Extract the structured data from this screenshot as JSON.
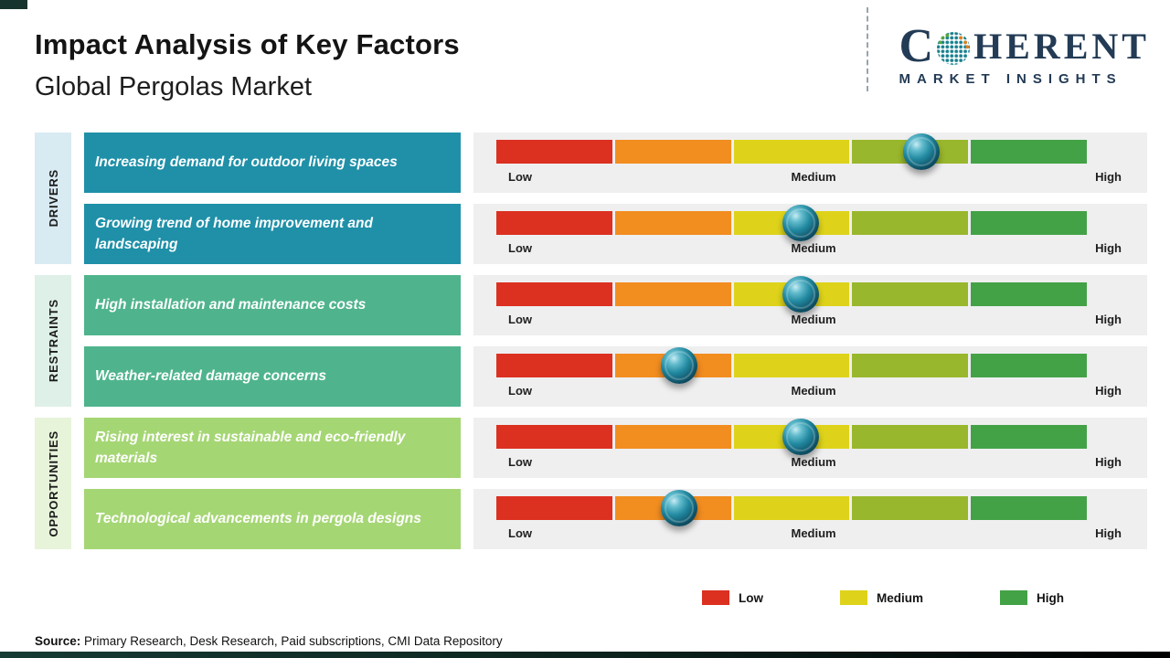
{
  "header": {
    "title": "Impact Analysis of Key Factors",
    "subtitle": "Global Pergolas Market"
  },
  "logo": {
    "brand_c": "C",
    "brand_rest": "HERENT",
    "tagline": "MARKET INSIGHTS",
    "navy": "#233b55"
  },
  "scale": {
    "low": "Low",
    "medium": "Medium",
    "high": "High"
  },
  "bar_colors": {
    "red": "#dc3020",
    "orange": "#f28d20",
    "yellow": "#ded31a",
    "yellow_green": "#99b72c",
    "green": "#43a246"
  },
  "categories": [
    {
      "label": "DRIVERS",
      "box_color": "#1f90a8",
      "strip_color": "#d8eaf2",
      "factors": [
        {
          "text": "Increasing demand for outdoor living spaces",
          "impact": 0.72
        },
        {
          "text": "Growing trend of home improvement and landscaping",
          "impact": 0.515
        }
      ]
    },
    {
      "label": "RESTRAINTS",
      "box_color": "#4fb48d",
      "strip_color": "#def0e7",
      "factors": [
        {
          "text": "High installation and maintenance costs",
          "impact": 0.515
        },
        {
          "text": "Weather-related damage concerns",
          "impact": 0.31
        }
      ]
    },
    {
      "label": "OPPORTUNITIES",
      "box_color": "#a5d674",
      "strip_color": "#e7f4da",
      "factors": [
        {
          "text": "Rising interest in sustainable and eco-friendly materials",
          "impact": 0.515
        },
        {
          "text": "Technological advancements in pergola designs",
          "impact": 0.31
        }
      ]
    }
  ],
  "legend": [
    {
      "label": "Low",
      "color": "#dc3020"
    },
    {
      "label": "Medium",
      "color": "#ded31a"
    },
    {
      "label": "High",
      "color": "#43a246"
    }
  ],
  "source": {
    "label": "Source:",
    "text": " Primary Research, Desk Research, Paid subscriptions, CMI Data Repository"
  },
  "chart_data": {
    "type": "bar",
    "title": "Impact Analysis of Key Factors",
    "subtitle": "Global Pergolas Market",
    "scale_labels": [
      "Low",
      "Medium",
      "High"
    ],
    "axis_range": [
      0,
      1
    ],
    "legend": [
      "Low",
      "Medium",
      "High"
    ],
    "series": [
      {
        "category": "Drivers",
        "factor": "Increasing demand for outdoor living spaces",
        "impact_level": "Medium-High",
        "position": 0.72
      },
      {
        "category": "Drivers",
        "factor": "Growing trend of home improvement and landscaping",
        "impact_level": "Medium",
        "position": 0.515
      },
      {
        "category": "Restraints",
        "factor": "High installation and maintenance costs",
        "impact_level": "Medium",
        "position": 0.515
      },
      {
        "category": "Restraints",
        "factor": "Weather-related damage concerns",
        "impact_level": "Low-Medium",
        "position": 0.31
      },
      {
        "category": "Opportunities",
        "factor": "Rising interest in sustainable and eco-friendly materials",
        "impact_level": "Medium",
        "position": 0.515
      },
      {
        "category": "Opportunities",
        "factor": "Technological advancements in pergola designs",
        "impact_level": "Low-Medium",
        "position": 0.31
      }
    ]
  }
}
